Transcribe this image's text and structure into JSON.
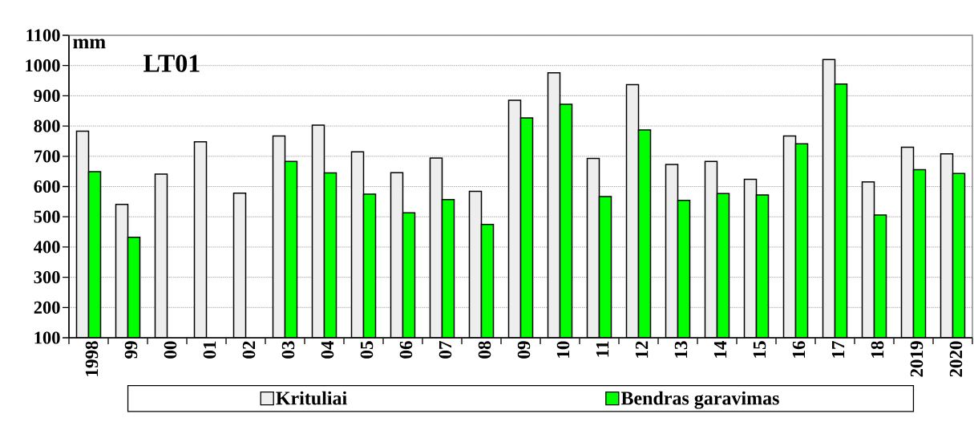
{
  "chart_data": {
    "type": "bar",
    "title": "LT01",
    "ylabel": "mm",
    "categories": [
      "1998",
      "99",
      "00",
      "01",
      "02",
      "03",
      "04",
      "05",
      "06",
      "07",
      "08",
      "09",
      "10",
      "11",
      "12",
      "13",
      "14",
      "15",
      "16",
      "17",
      "18",
      "2019",
      "2020"
    ],
    "series": [
      {
        "name": "Krituliai",
        "color": "#eeeeee",
        "values": [
          783,
          541,
          641,
          748,
          578,
          767,
          803,
          715,
          646,
          694,
          584,
          885,
          976,
          693,
          937,
          673,
          683,
          624,
          767,
          1020,
          615,
          730,
          708
        ]
      },
      {
        "name": "Bendras garavimas",
        "color": "#00ff00",
        "values": [
          649,
          432,
          null,
          null,
          null,
          683,
          645,
          575,
          513,
          557,
          475,
          827,
          872,
          567,
          787,
          554,
          577,
          572,
          741,
          939,
          506,
          656,
          643
        ]
      }
    ],
    "ylim": [
      100,
      1100
    ],
    "yticks": [
      100,
      200,
      300,
      400,
      500,
      600,
      700,
      800,
      900,
      1000,
      1100
    ],
    "grid": "y",
    "legend": "bottom"
  }
}
